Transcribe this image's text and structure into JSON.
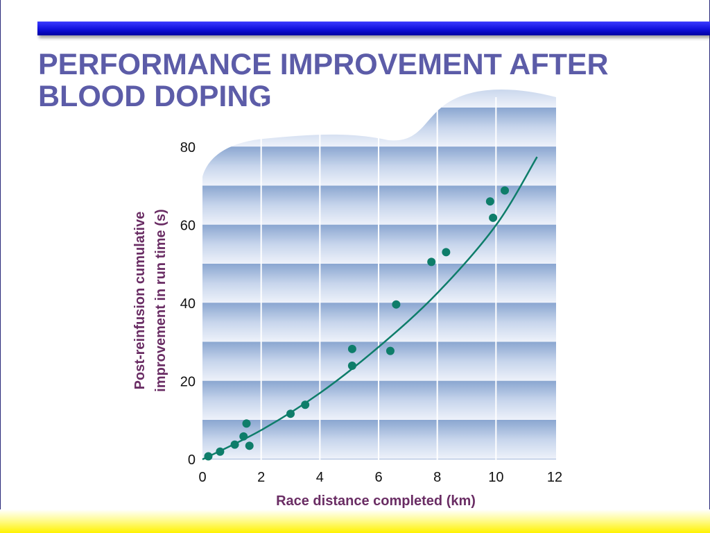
{
  "slide": {
    "title_line1": "PERFORMANCE IMPROVEMENT AFTER",
    "title_line2": "BLOOD DOPING"
  },
  "colors": {
    "title": "#5c5ca8",
    "accent_bar": "#1111dd",
    "axis_title": "#6a2d64",
    "points": "#0e7d6a",
    "curve": "#0e7d6a",
    "panel_light": "#e8eef8",
    "panel_dark": "#8aa6d0"
  },
  "chart_data": {
    "type": "scatter",
    "title": "",
    "xlabel": "Race distance completed (km)",
    "ylabel_line1": "Post-reinfusion cumulative",
    "ylabel_line2": "improvement in run time (s)",
    "xlim": [
      0,
      12
    ],
    "ylim": [
      0,
      80
    ],
    "xticks": [
      0,
      2,
      4,
      6,
      8,
      10,
      12
    ],
    "yticks": [
      0,
      20,
      40,
      60,
      80
    ],
    "grid": true,
    "legend": "none",
    "series": [
      {
        "kind": "points",
        "x": [
          0.2,
          0.6,
          1.1,
          1.4,
          1.5,
          1.6,
          3.0,
          3.5,
          5.1,
          5.1,
          6.4,
          6.6,
          7.8,
          8.3,
          9.8,
          9.9,
          10.3
        ],
        "y": [
          0.8,
          2.0,
          3.8,
          5.9,
          9.2,
          3.5,
          11.7,
          14.0,
          24.0,
          28.3,
          27.8,
          39.7,
          50.6,
          53.1,
          66.1,
          61.9,
          68.9
        ]
      },
      {
        "kind": "fit-curve",
        "x": [
          0,
          2,
          4,
          6,
          8,
          10,
          11.4
        ],
        "y": [
          0,
          7.5,
          17,
          28.8,
          42.6,
          60,
          77.5
        ]
      }
    ]
  }
}
